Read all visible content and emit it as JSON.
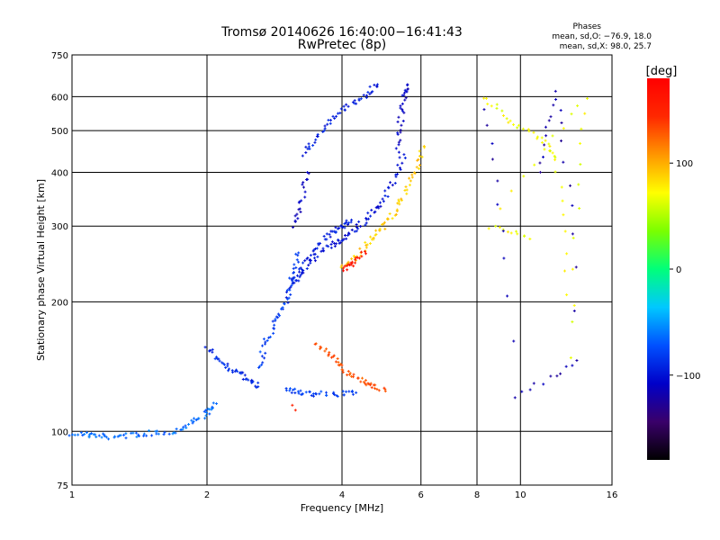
{
  "header": {
    "title_line1": "Tromsø 20140626 16:40:00−16:41:43",
    "title_line2": "RwPretec (8p)",
    "phases_title": "Phases",
    "phases_o": "mean, sd,O: −76.9, 18.0",
    "phases_x": "mean, sd,X:  98.0, 25.7"
  },
  "colorbar": {
    "unit": "[deg]",
    "ticks": [
      {
        "value": 100,
        "label": "100"
      },
      {
        "value": 0,
        "label": "0"
      },
      {
        "value": -100,
        "label": "−100"
      }
    ],
    "range": [
      -180,
      180
    ],
    "palette": [
      "#000000",
      "#3a006a",
      "#0000c8",
      "#0050ff",
      "#00c8ff",
      "#00ff7a",
      "#7aff00",
      "#ffff00",
      "#ff9600",
      "#ff2800",
      "#ff0000"
    ]
  },
  "chart_data": {
    "type": "scatter",
    "xlabel": "Frequency [MHz]",
    "ylabel": "Stationary phase Virtual Height [km]",
    "x_scale": "log",
    "y_scale": "log",
    "xlim": [
      1,
      16
    ],
    "ylim": [
      75,
      750
    ],
    "x_ticks": [
      1,
      2,
      4,
      6,
      8,
      10,
      16
    ],
    "y_ticks": [
      75,
      100,
      200,
      300,
      400,
      500,
      600,
      750
    ],
    "grid": true,
    "series": [
      {
        "x": [
          1.0,
          1.1,
          1.2,
          1.35,
          1.5,
          1.7,
          1.85,
          2.0,
          2.1
        ],
        "y": [
          99,
          98,
          97,
          98,
          99,
          100,
          105,
          110,
          116
        ],
        "phase": -65
      },
      {
        "x": [
          2.0,
          2.15,
          2.3,
          2.45,
          2.6
        ],
        "y": [
          155,
          145,
          138,
          132,
          127
        ],
        "phase": -90
      },
      {
        "x": [
          2.6,
          2.7,
          2.85,
          3.0,
          3.1,
          3.2
        ],
        "y": [
          140,
          160,
          180,
          200,
          230,
          260
        ],
        "phase": -80
      },
      {
        "x": [
          3.0,
          3.2,
          3.5,
          3.8,
          4.0,
          4.2
        ],
        "y": [
          200,
          240,
          270,
          290,
          300,
          310
        ],
        "phase": -95
      },
      {
        "x": [
          3.1,
          3.25,
          3.35
        ],
        "y": [
          300,
          340,
          400
        ],
        "phase": -110
      },
      {
        "x": [
          3.1,
          3.3,
          3.5,
          3.8,
          4.0,
          4.3,
          4.6,
          4.9,
          5.2,
          5.5
        ],
        "y": [
          220,
          238,
          255,
          270,
          280,
          295,
          315,
          340,
          380,
          440
        ],
        "phase": -100
      },
      {
        "x": [
          5.3,
          5.4,
          5.5,
          5.6
        ],
        "y": [
          450,
          520,
          600,
          640
        ],
        "phase": -110
      },
      {
        "x": [
          3.3,
          3.5,
          3.8,
          4.1,
          4.5,
          4.8
        ],
        "y": [
          440,
          480,
          530,
          570,
          605,
          640
        ],
        "phase": -95
      },
      {
        "x": [
          3.0,
          3.2,
          3.5,
          3.9,
          4.3
        ],
        "y": [
          125,
          123,
          122,
          122,
          123
        ],
        "phase": -80
      },
      {
        "x": [
          4.0,
          4.3,
          4.6,
          4.9,
          5.2,
          5.5,
          5.8,
          6.1
        ],
        "y": [
          240,
          255,
          275,
          295,
          320,
          355,
          400,
          460
        ],
        "phase": 90
      },
      {
        "x": [
          3.5,
          3.8,
          4.0,
          4.3,
          4.6,
          5.0
        ],
        "y": [
          160,
          150,
          140,
          133,
          128,
          124
        ],
        "phase": 130
      },
      {
        "x": [
          4.0,
          4.2,
          4.5
        ],
        "y": [
          238,
          245,
          262
        ],
        "phase": 160
      },
      {
        "x": [
          3.1,
          3.15
        ],
        "y": [
          115,
          112
        ],
        "phase": 150
      },
      {
        "x": [
          8.3,
          9.5,
          11.2,
          12.0,
          13.0,
          14.0,
          8.5,
          10.5
        ],
        "y": [
          600,
          520,
          480,
          430,
          150,
          600,
          300,
          280
        ],
        "phase": 70
      },
      {
        "x": [
          11.0,
          12.0,
          13.5,
          9.7,
          8.3
        ],
        "y": [
          395,
          610,
          145,
          120,
          560
        ],
        "phase": -120
      }
    ]
  }
}
